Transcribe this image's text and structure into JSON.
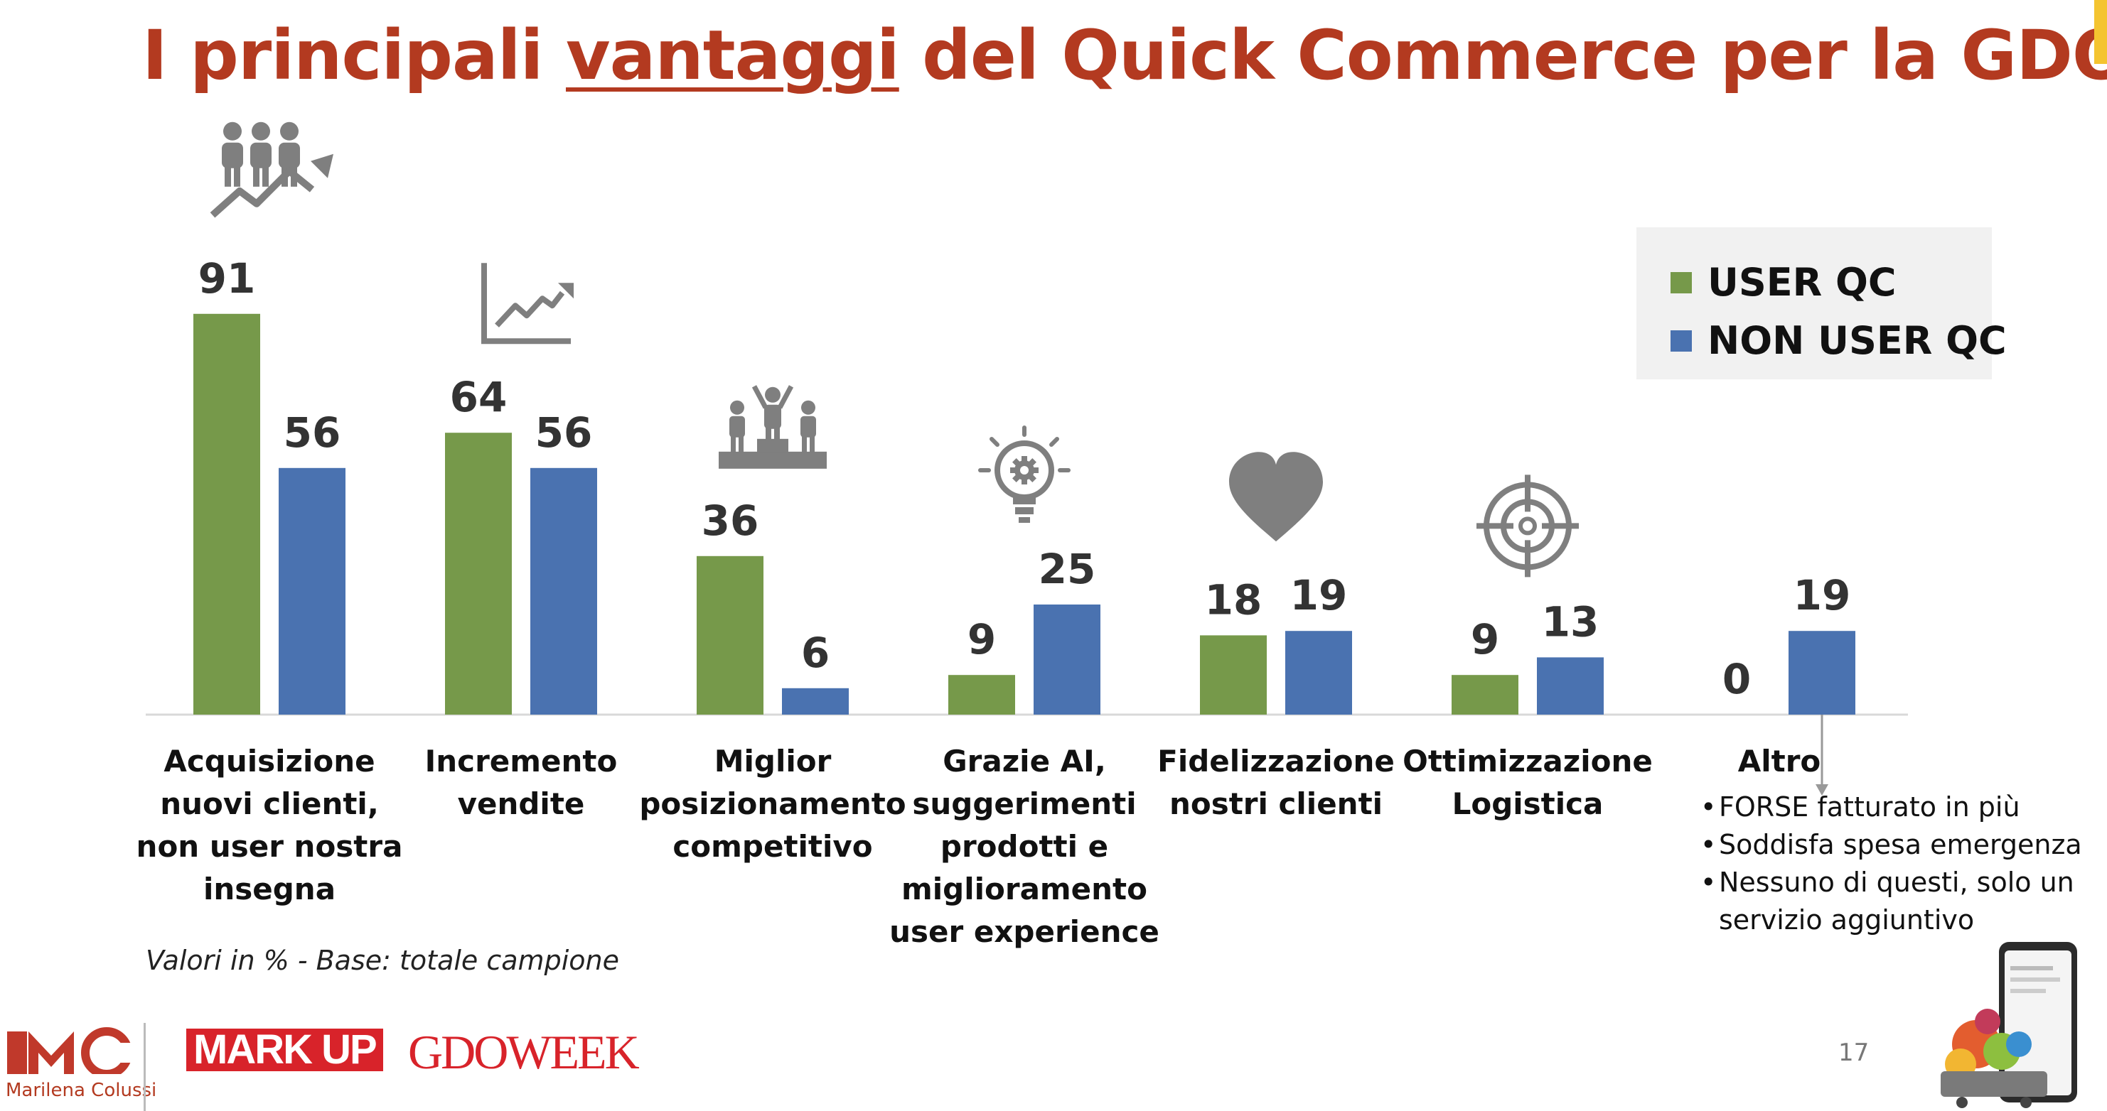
{
  "title": {
    "before": "I principali ",
    "underlined": "vantaggi",
    "after": " del Quick Commerce per la GDO"
  },
  "colors": {
    "title": "#b33a20",
    "user_qc": "#76994a",
    "non_user_qc": "#4a72b0",
    "icons": "#7f7f7f",
    "axis": "#d9d9d9"
  },
  "chart_data": {
    "type": "bar",
    "categories": [
      [
        "Acquisizione",
        "nuovi clienti,",
        "non user nostra",
        "insegna"
      ],
      [
        "Incremento",
        "vendite"
      ],
      [
        "Miglior",
        "posizionamento",
        "competitivo"
      ],
      [
        "Grazie AI,",
        "suggerimenti",
        "prodotti e",
        "miglioramento",
        "user experience"
      ],
      [
        "Fidelizzazione",
        "nostri clienti"
      ],
      [
        "Ottimizzazione",
        "Logistica"
      ],
      [
        "Altro"
      ]
    ],
    "series": [
      {
        "name": "USER QC",
        "values": [
          91,
          64,
          36,
          9,
          18,
          9,
          0
        ]
      },
      {
        "name": "NON USER QC",
        "values": [
          56,
          56,
          6,
          25,
          19,
          13,
          19
        ]
      }
    ],
    "category_icons": [
      "people-growth-icon",
      "line-chart-icon",
      "podium-icon",
      "lightbulb-gear-icon",
      "heart-icon",
      "target-icon",
      ""
    ],
    "legend_position": "top-right",
    "grid": false,
    "ylim": [
      0,
      100
    ]
  },
  "note": "Valori in % - Base: totale campione",
  "altro_details": [
    "FORSE fatturato in più",
    "Soddisfa spesa emergenza",
    "Nessuno di questi, solo un servizio aggiuntivo"
  ],
  "page_number": "17",
  "logos": {
    "mc_name": "Marilena Colussi",
    "mc_mark": "MC",
    "markup": "MARK UP",
    "gdoweek": "GDOWEEK"
  }
}
